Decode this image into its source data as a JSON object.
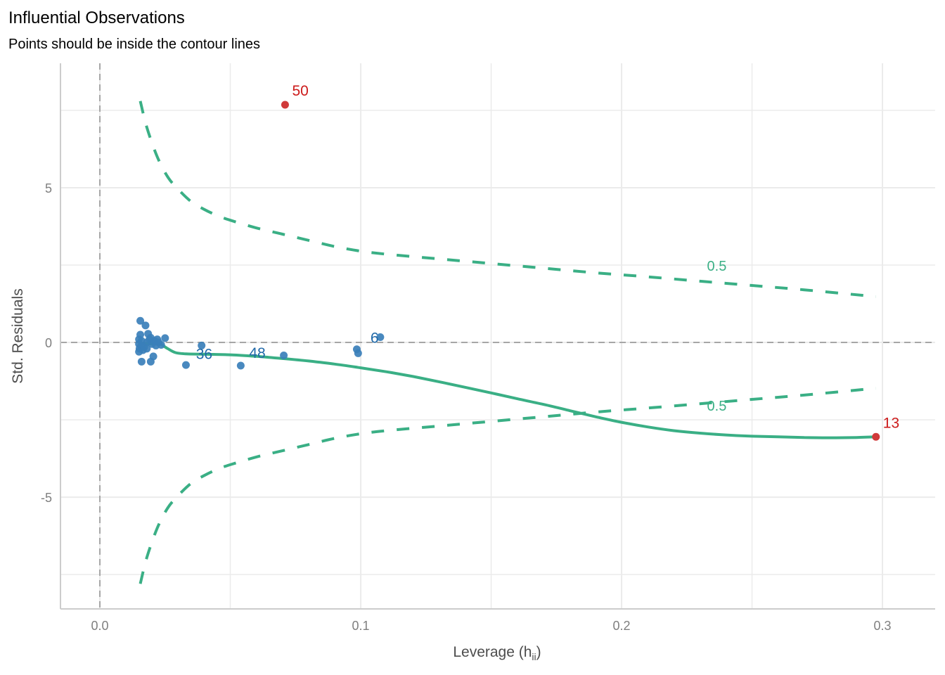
{
  "chart_data": {
    "type": "scatter",
    "title": "Influential Observations",
    "subtitle": "Points should be inside the contour lines",
    "xlabel": "Leverage (h",
    "xlabel_subscript": "ii",
    "xlabel_suffix": ")",
    "ylabel": "Std. Residuals",
    "xlim": [
      -0.0151,
      0.3202
    ],
    "ylim": [
      -8.61,
      9.02
    ],
    "x_ticks": [
      {
        "value": 0.0,
        "label": "0.0"
      },
      {
        "value": 0.1,
        "label": "0.1"
      },
      {
        "value": 0.2,
        "label": "0.2"
      },
      {
        "value": 0.3,
        "label": "0.3"
      }
    ],
    "x_minor_grid": [
      0.05,
      0.15,
      0.25
    ],
    "y_ticks": [
      {
        "value": 5,
        "label": "5"
      },
      {
        "value": 0,
        "label": "0"
      },
      {
        "value": -5,
        "label": "-5"
      }
    ],
    "y_minor_grid": [
      7.5,
      2.5,
      -2.5,
      -7.5
    ],
    "grid": true,
    "reference_lines": {
      "x": 0,
      "y": 0
    },
    "colors": {
      "normal": "#3a7fba",
      "influential": "#d03a3a",
      "normal_label": "#1f68a8",
      "influential_label": "#cc1a1a",
      "contour": "#3aaf85",
      "smooth": "#3aaf85",
      "grid": "#ebebeb",
      "refline": "#a6a6a6",
      "axis": "#cccccc"
    },
    "points": [
      {
        "x": 0.0155,
        "y": 0.7
      },
      {
        "x": 0.0175,
        "y": 0.55
      },
      {
        "x": 0.0185,
        "y": 0.28
      },
      {
        "x": 0.0155,
        "y": 0.25
      },
      {
        "x": 0.015,
        "y": 0.1
      },
      {
        "x": 0.016,
        "y": 0.05
      },
      {
        "x": 0.015,
        "y": -0.05
      },
      {
        "x": 0.0158,
        "y": -0.12
      },
      {
        "x": 0.0152,
        "y": -0.2
      },
      {
        "x": 0.0165,
        "y": -0.25
      },
      {
        "x": 0.015,
        "y": -0.3
      },
      {
        "x": 0.017,
        "y": -0.15
      },
      {
        "x": 0.018,
        "y": 0.0
      },
      {
        "x": 0.019,
        "y": 0.1
      },
      {
        "x": 0.02,
        "y": -0.05
      },
      {
        "x": 0.0195,
        "y": 0.15
      },
      {
        "x": 0.021,
        "y": 0.05
      },
      {
        "x": 0.0215,
        "y": -0.1
      },
      {
        "x": 0.022,
        "y": 0.1
      },
      {
        "x": 0.0225,
        "y": 0.0
      },
      {
        "x": 0.018,
        "y": -0.2
      },
      {
        "x": 0.0205,
        "y": -0.45
      },
      {
        "x": 0.016,
        "y": -0.62
      },
      {
        "x": 0.0195,
        "y": -0.62
      },
      {
        "x": 0.025,
        "y": 0.14
      },
      {
        "x": 0.0235,
        "y": -0.08
      },
      {
        "x": 0.033,
        "y": -0.73
      },
      {
        "x": 0.039,
        "y": -0.1,
        "label": "36"
      },
      {
        "x": 0.054,
        "y": -0.75,
        "label": "48"
      },
      {
        "x": 0.0705,
        "y": -0.42
      },
      {
        "x": 0.0985,
        "y": -0.22
      },
      {
        "x": 0.099,
        "y": -0.35
      },
      {
        "x": 0.1075,
        "y": 0.17,
        "label": "6"
      },
      {
        "x": 0.071,
        "y": 7.68,
        "label": "50",
        "influential": true
      },
      {
        "x": 0.2975,
        "y": -3.05,
        "label": "13",
        "influential": true
      }
    ],
    "contours": [
      {
        "label": "0.5",
        "label_at": [
          0.2365,
          2.32
        ],
        "points": [
          [
            0.0155,
            7.8
          ],
          [
            0.018,
            6.95
          ],
          [
            0.022,
            6.0
          ],
          [
            0.026,
            5.35
          ],
          [
            0.03,
            4.95
          ],
          [
            0.035,
            4.55
          ],
          [
            0.04,
            4.3
          ],
          [
            0.045,
            4.1
          ],
          [
            0.05,
            3.95
          ],
          [
            0.06,
            3.7
          ],
          [
            0.07,
            3.5
          ],
          [
            0.08,
            3.3
          ],
          [
            0.09,
            3.1
          ],
          [
            0.1,
            2.95
          ],
          [
            0.11,
            2.85
          ],
          [
            0.13,
            2.7
          ],
          [
            0.15,
            2.55
          ],
          [
            0.17,
            2.4
          ],
          [
            0.19,
            2.25
          ],
          [
            0.21,
            2.12
          ],
          [
            0.23,
            1.98
          ],
          [
            0.25,
            1.84
          ],
          [
            0.27,
            1.7
          ],
          [
            0.2975,
            1.48
          ]
        ]
      },
      {
        "label": "0.5",
        "label_at": [
          0.2365,
          -2.2
        ],
        "points": [
          [
            0.0155,
            -7.8
          ],
          [
            0.018,
            -6.95
          ],
          [
            0.022,
            -6.0
          ],
          [
            0.026,
            -5.35
          ],
          [
            0.03,
            -4.95
          ],
          [
            0.035,
            -4.55
          ],
          [
            0.04,
            -4.3
          ],
          [
            0.045,
            -4.1
          ],
          [
            0.05,
            -3.95
          ],
          [
            0.06,
            -3.7
          ],
          [
            0.07,
            -3.5
          ],
          [
            0.08,
            -3.3
          ],
          [
            0.09,
            -3.1
          ],
          [
            0.1,
            -2.95
          ],
          [
            0.11,
            -2.85
          ],
          [
            0.13,
            -2.7
          ],
          [
            0.15,
            -2.55
          ],
          [
            0.17,
            -2.4
          ],
          [
            0.19,
            -2.25
          ],
          [
            0.21,
            -2.12
          ],
          [
            0.23,
            -1.98
          ],
          [
            0.25,
            -1.84
          ],
          [
            0.27,
            -1.7
          ],
          [
            0.2975,
            -1.48
          ]
        ]
      }
    ],
    "smooth": [
      [
        0.0155,
        -0.02
      ],
      [
        0.02,
        -0.05
      ],
      [
        0.023,
        -0.05
      ],
      [
        0.026,
        -0.2
      ],
      [
        0.029,
        -0.33
      ],
      [
        0.033,
        -0.37
      ],
      [
        0.04,
        -0.38
      ],
      [
        0.05,
        -0.4
      ],
      [
        0.06,
        -0.45
      ],
      [
        0.07,
        -0.52
      ],
      [
        0.08,
        -0.6
      ],
      [
        0.09,
        -0.7
      ],
      [
        0.1,
        -0.82
      ],
      [
        0.11,
        -0.95
      ],
      [
        0.12,
        -1.1
      ],
      [
        0.13,
        -1.27
      ],
      [
        0.14,
        -1.45
      ],
      [
        0.15,
        -1.63
      ],
      [
        0.16,
        -1.82
      ],
      [
        0.17,
        -2.0
      ],
      [
        0.18,
        -2.2
      ],
      [
        0.19,
        -2.4
      ],
      [
        0.2,
        -2.58
      ],
      [
        0.21,
        -2.73
      ],
      [
        0.22,
        -2.85
      ],
      [
        0.23,
        -2.93
      ],
      [
        0.24,
        -2.99
      ],
      [
        0.25,
        -3.03
      ],
      [
        0.26,
        -3.05
      ],
      [
        0.27,
        -3.07
      ],
      [
        0.28,
        -3.08
      ],
      [
        0.29,
        -3.07
      ],
      [
        0.2975,
        -3.05
      ]
    ]
  }
}
